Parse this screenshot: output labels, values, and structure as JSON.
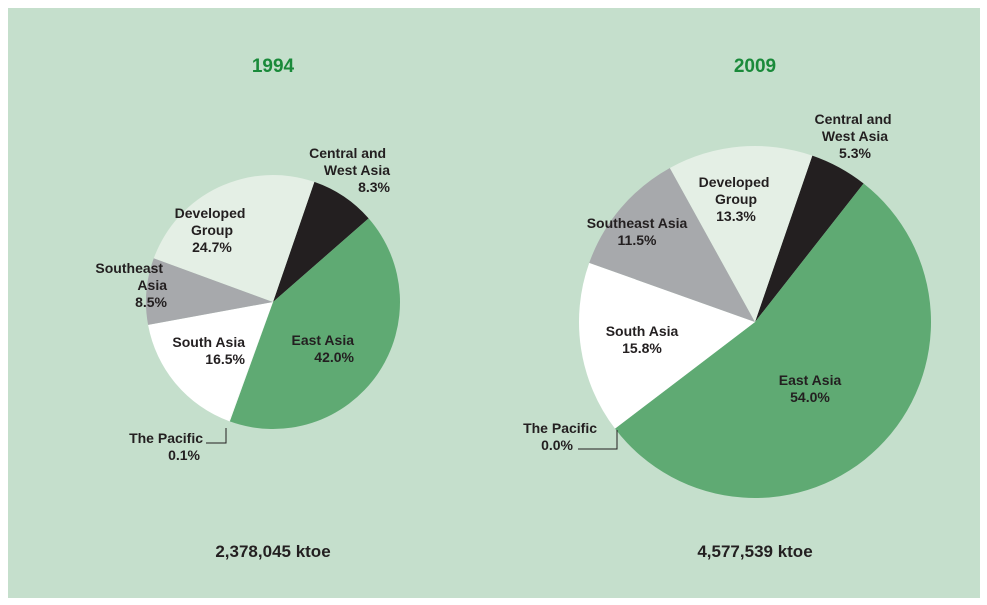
{
  "chart_data": [
    {
      "type": "pie",
      "title": "1994",
      "annotation": "2,378,045 ktoe",
      "categories": [
        "Central and West Asia",
        "East Asia",
        "The Pacific",
        "South Asia",
        "Southeast Asia",
        "Developed Group"
      ],
      "values": [
        8.3,
        42.0,
        0.1,
        16.5,
        8.5,
        24.7
      ],
      "value_labels": [
        "8.3%",
        "42.0%",
        "0.1%",
        "16.5%",
        "8.5%",
        "24.7%"
      ],
      "colors": [
        "#231f20",
        "#5faa73",
        "#ffffff",
        "#ffffff",
        "#a7a9ac",
        "#e4efe5"
      ]
    },
    {
      "type": "pie",
      "title": "2009",
      "annotation": "4,577,539 ktoe",
      "categories": [
        "Central and West Asia",
        "East Asia",
        "The Pacific",
        "South Asia",
        "Southeast Asia",
        "Developed Group"
      ],
      "values": [
        5.3,
        54.0,
        0.0,
        15.8,
        11.5,
        13.3
      ],
      "value_labels": [
        "5.3%",
        "54.0%",
        "0.0%",
        "15.8%",
        "11.5%",
        "13.3%"
      ],
      "colors": [
        "#231f20",
        "#5faa73",
        "#ffffff",
        "#ffffff",
        "#a7a9ac",
        "#e4efe5"
      ]
    }
  ]
}
